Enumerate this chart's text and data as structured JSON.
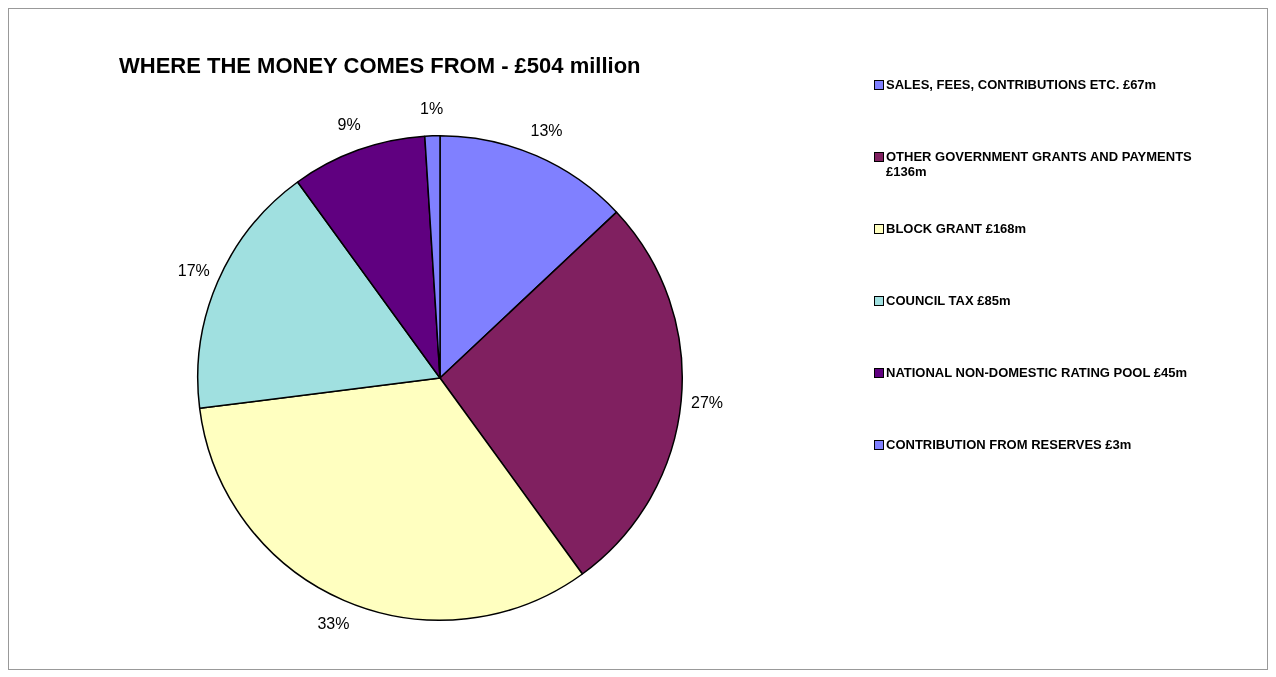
{
  "chart_data": {
    "type": "pie",
    "title": "WHERE THE MONEY COMES FROM - £504 million",
    "categories": [
      "SALES, FEES, CONTRIBUTIONS ETC. £67m",
      "OTHER GOVERNMENT GRANTS AND PAYMENTS £136m",
      "BLOCK GRANT £168m",
      "COUNCIL TAX £85m",
      "NATIONAL NON-DOMESTIC RATING POOL £45m",
      "CONTRIBUTION FROM  RESERVES £3m"
    ],
    "values": [
      13,
      27,
      33,
      17,
      9,
      1
    ],
    "colors": [
      "#8080ff",
      "#802060",
      "#ffffc0",
      "#a0e0e0",
      "#600080",
      "#8080ff"
    ],
    "value_labels": [
      "13%",
      "27%",
      "33%",
      "17%",
      "9%",
      "1%"
    ],
    "legend": "right"
  }
}
